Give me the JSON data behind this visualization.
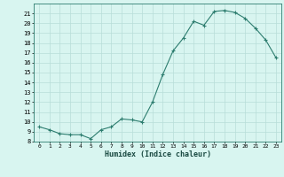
{
  "x": [
    0,
    1,
    2,
    3,
    4,
    5,
    6,
    7,
    8,
    9,
    10,
    11,
    12,
    13,
    14,
    15,
    16,
    17,
    18,
    19,
    20,
    21,
    22,
    23
  ],
  "y": [
    9.5,
    9.2,
    8.8,
    8.7,
    8.7,
    8.3,
    9.2,
    9.5,
    10.3,
    10.2,
    10.0,
    12.0,
    14.8,
    17.2,
    18.5,
    20.2,
    19.8,
    21.2,
    21.3,
    21.1,
    20.5,
    19.5,
    18.3,
    16.5
  ],
  "xlabel": "Humidex (Indice chaleur)",
  "line_color": "#2d7d6f",
  "bg_color": "#d8f5f0",
  "grid_color": "#b8ddd8",
  "ylim": [
    8,
    22
  ],
  "xlim": [
    -0.5,
    23.5
  ],
  "yticks": [
    8,
    9,
    10,
    11,
    12,
    13,
    14,
    15,
    16,
    17,
    18,
    19,
    20,
    21
  ],
  "xticks": [
    0,
    1,
    2,
    3,
    4,
    5,
    6,
    7,
    8,
    9,
    10,
    11,
    12,
    13,
    14,
    15,
    16,
    17,
    18,
    19,
    20,
    21,
    22,
    23
  ]
}
